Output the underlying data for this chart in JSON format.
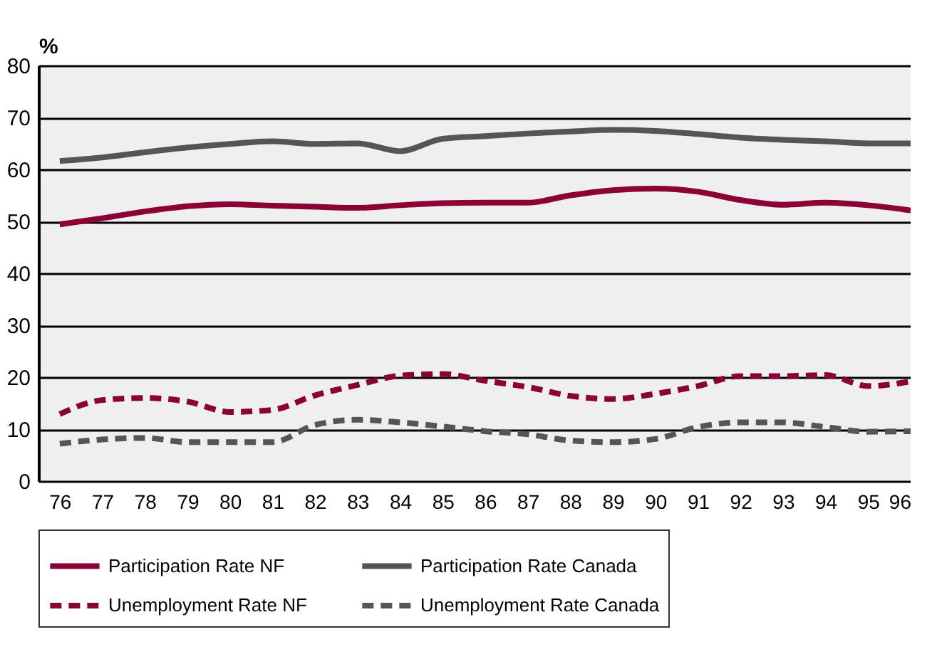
{
  "chart_data": {
    "type": "line",
    "ylabel": "%",
    "x": [
      76,
      77,
      78,
      79,
      80,
      81,
      82,
      83,
      84,
      85,
      86,
      87,
      88,
      89,
      90,
      91,
      92,
      93,
      94,
      95,
      96
    ],
    "xlim": [
      75.5,
      96
    ],
    "xticks": [
      76,
      77,
      78,
      79,
      80,
      81,
      82,
      83,
      84,
      85,
      86,
      87,
      88,
      89,
      90,
      91,
      92,
      93,
      94,
      95,
      96
    ],
    "ylim": [
      0,
      80
    ],
    "yticks": [
      0,
      10,
      20,
      30,
      40,
      50,
      60,
      70,
      80
    ],
    "grid": "y",
    "legend": "bottom",
    "series": [
      {
        "name": "Participation Rate NF",
        "color": "#8b0036",
        "line_style": "solid",
        "values": [
          49.4,
          50.6,
          51.9,
          52.9,
          53.3,
          53.0,
          52.8,
          52.6,
          53.1,
          53.5,
          53.6,
          53.6,
          55.0,
          56.0,
          56.3,
          55.7,
          54.1,
          53.2,
          53.6,
          53.1,
          52.1
        ]
      },
      {
        "name": "Participation Rate Canada",
        "color": "#555555",
        "line_style": "solid",
        "values": [
          61.6,
          62.3,
          63.3,
          64.2,
          64.9,
          65.4,
          64.9,
          65.0,
          63.5,
          65.9,
          66.4,
          66.9,
          67.3,
          67.6,
          67.4,
          66.8,
          66.1,
          65.7,
          65.4,
          65.0,
          65.0
        ]
      },
      {
        "name": "Unemployment Rate NF",
        "color": "#8b0036",
        "line_style": "dashed",
        "values": [
          12.9,
          15.6,
          16.0,
          15.3,
          13.3,
          13.7,
          16.5,
          18.5,
          20.3,
          20.6,
          19.3,
          18.1,
          16.4,
          15.8,
          16.8,
          18.3,
          20.2,
          20.2,
          20.4,
          18.3,
          19.2
        ]
      },
      {
        "name": "Unemployment Rate Canada",
        "color": "#555555",
        "line_style": "dashed",
        "values": [
          7.2,
          8.0,
          8.3,
          7.5,
          7.5,
          7.5,
          10.8,
          11.8,
          11.3,
          10.5,
          9.6,
          9.0,
          7.8,
          7.5,
          8.1,
          10.4,
          11.3,
          11.3,
          10.4,
          9.5,
          9.6
        ]
      }
    ]
  }
}
